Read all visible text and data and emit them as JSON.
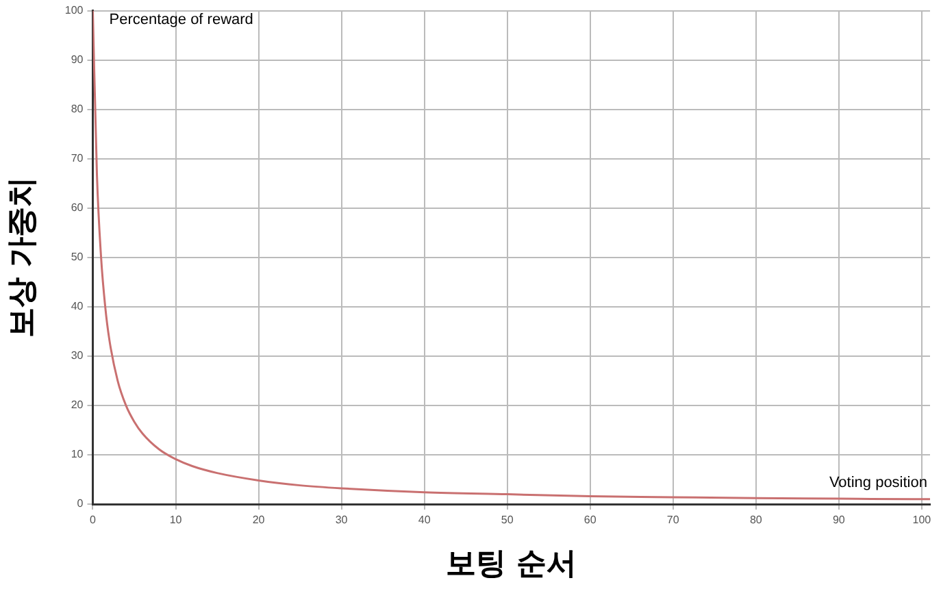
{
  "chart_data": {
    "type": "line",
    "xlabel": "보팅 순서",
    "ylabel": "보상 가중치",
    "annotations": [
      "Percentage of reward",
      "Voting position"
    ],
    "x": [
      0,
      0.5,
      1,
      1.5,
      2,
      3,
      4,
      5,
      6,
      8,
      10,
      12,
      15,
      20,
      25,
      30,
      40,
      50,
      60,
      70,
      80,
      90,
      100,
      101
    ],
    "series": [
      {
        "color": "#c97070",
        "values": [
          100,
          66.7,
          50,
          40,
          33.3,
          25,
          20,
          16.7,
          14.3,
          11.1,
          9.1,
          7.7,
          6.3,
          4.8,
          3.8,
          3.2,
          2.4,
          2,
          1.6,
          1.4,
          1.2,
          1.1,
          1,
          1
        ]
      }
    ],
    "xlim": [
      0,
      101
    ],
    "ylim": [
      0,
      100
    ],
    "xticks": [
      0,
      10,
      20,
      30,
      40,
      50,
      60,
      70,
      80,
      90,
      100
    ],
    "yticks": [
      0,
      10,
      20,
      30,
      40,
      50,
      60,
      70,
      80,
      90,
      100
    ],
    "grid": true,
    "legend": false,
    "marker": "none",
    "line_style": "solid"
  }
}
